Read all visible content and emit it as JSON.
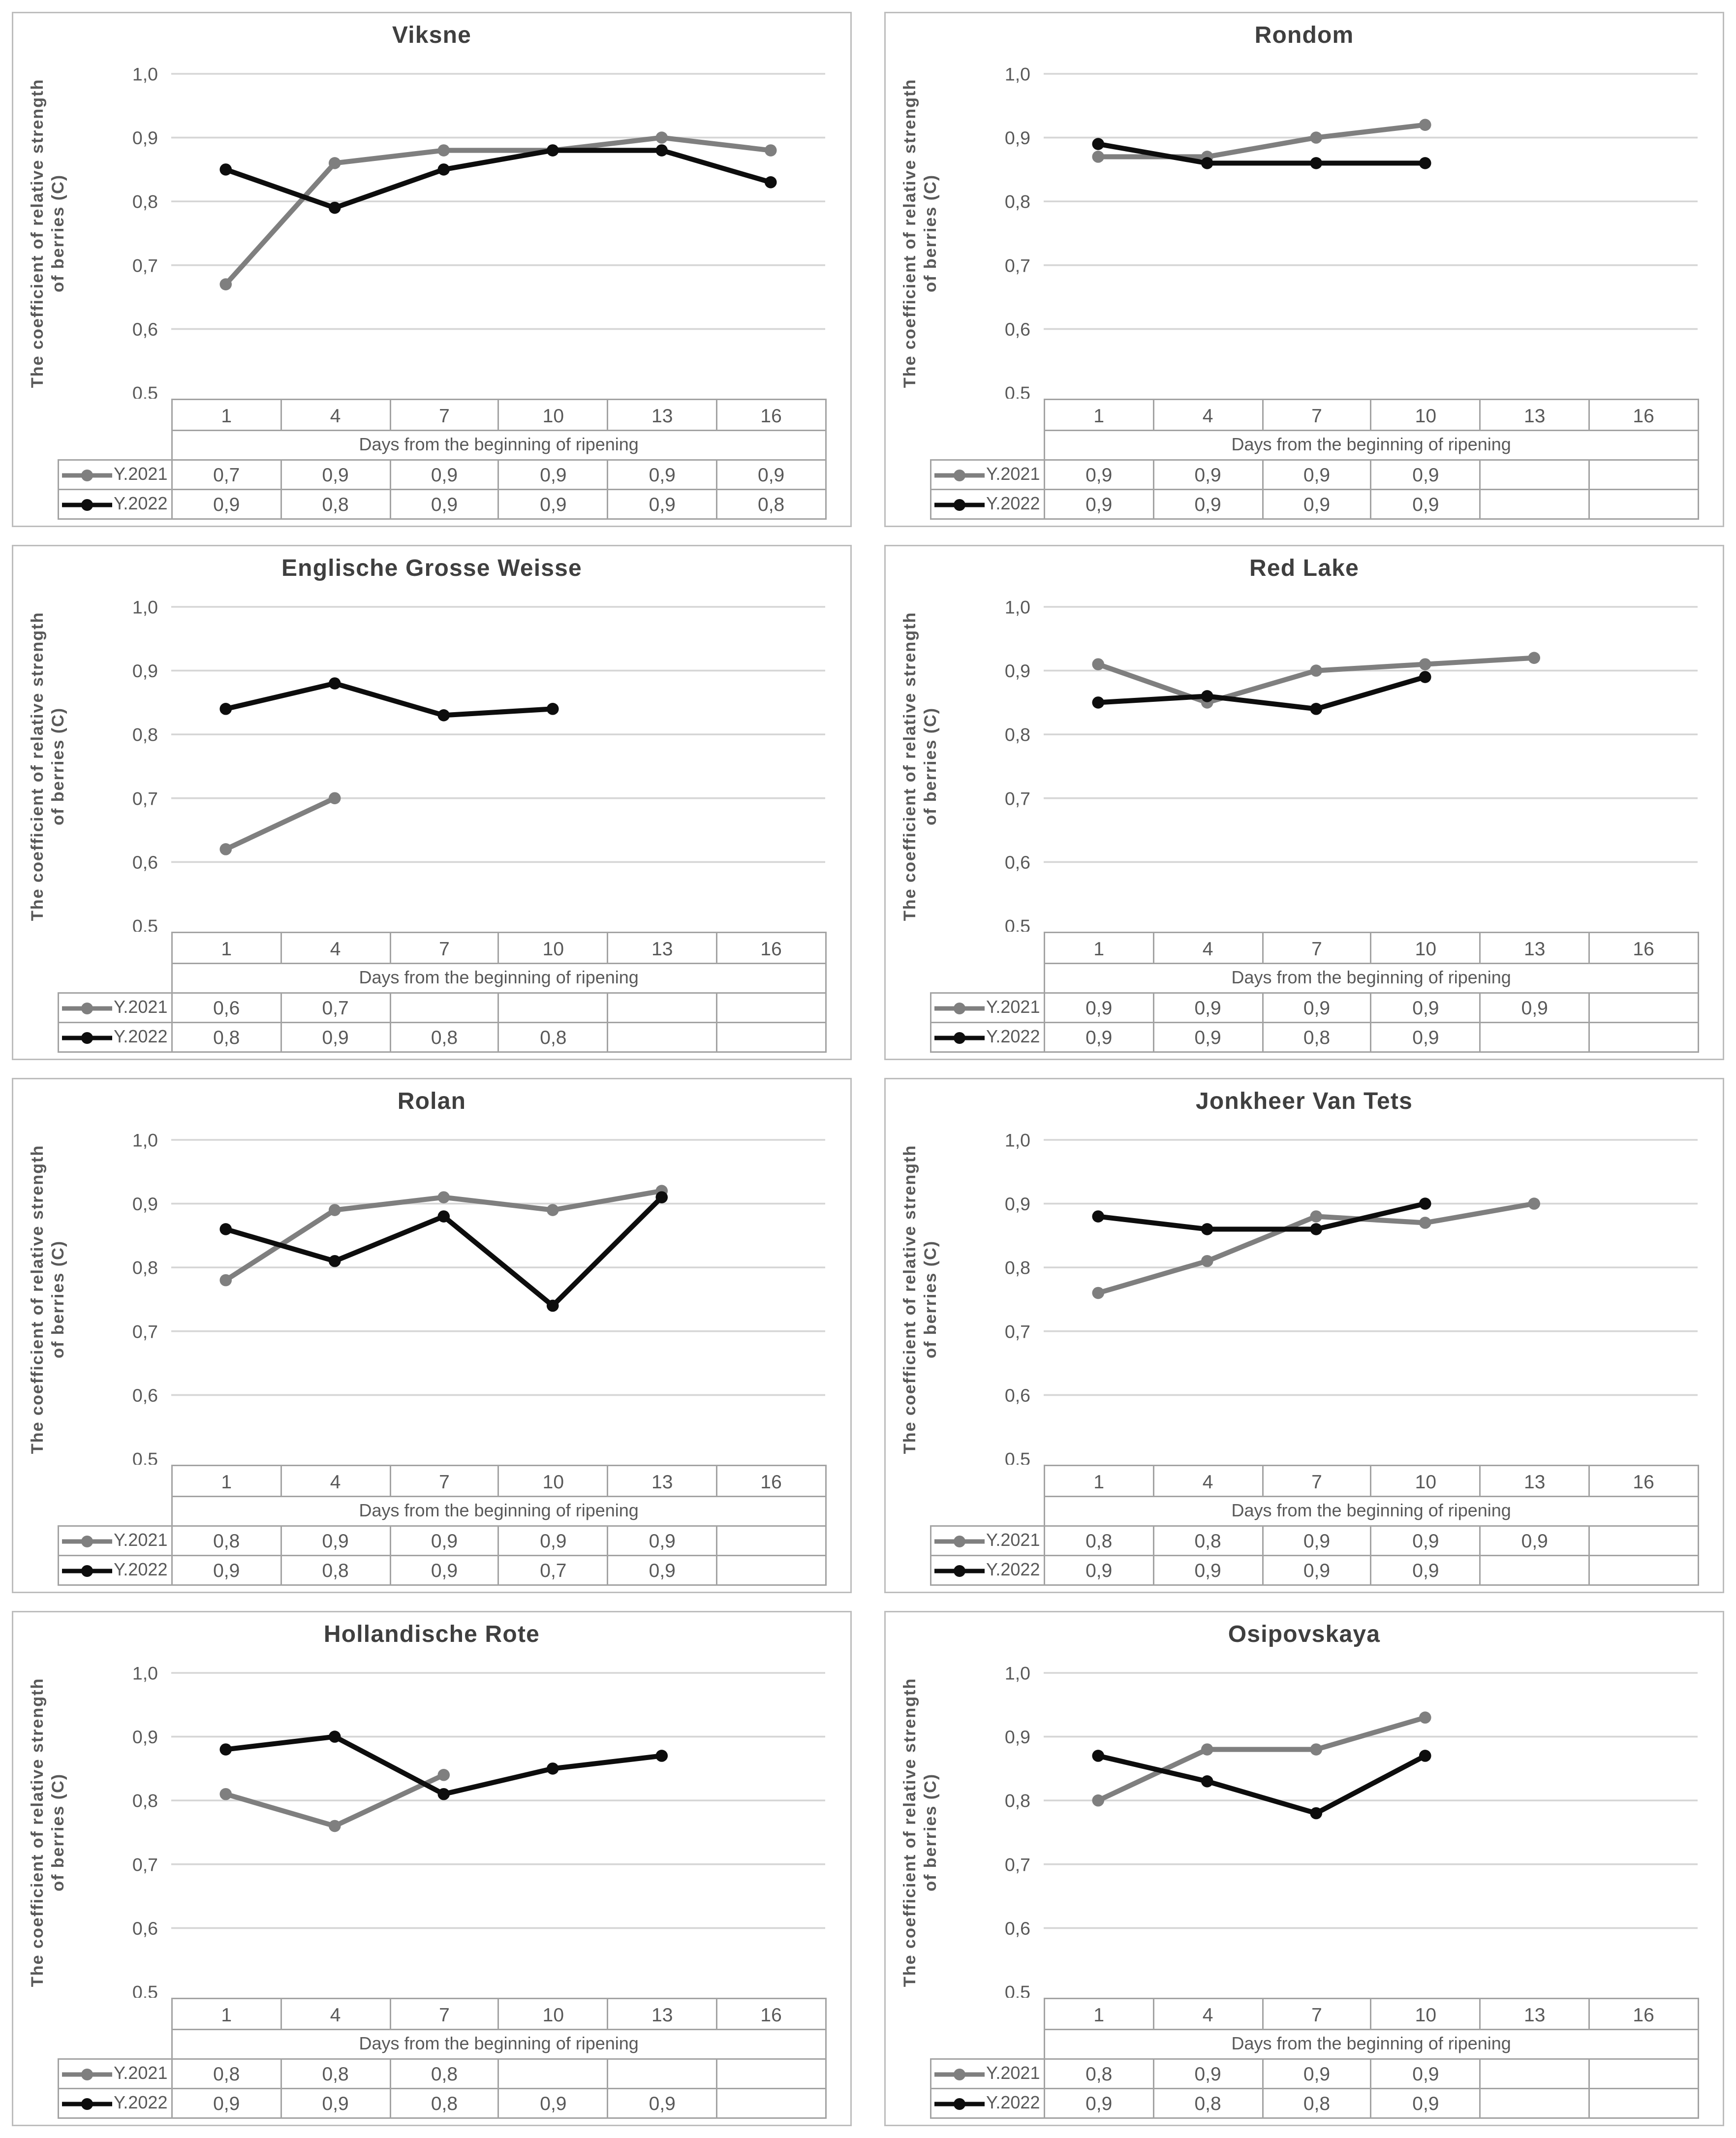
{
  "figure": {
    "y_axis_label": "The coefficient of relative strength of berries (C)",
    "y_axis_label_lines": [
      "The coefficient of relative strength",
      "of berries (C)"
    ],
    "x_axis_label": "Days from the beginning of ripening",
    "y_ticks": [
      {
        "v": 1.0,
        "label": "1,0"
      },
      {
        "v": 0.9,
        "label": "0,9"
      },
      {
        "v": 0.8,
        "label": "0,8"
      },
      {
        "v": 0.7,
        "label": "0,7"
      },
      {
        "v": 0.6,
        "label": "0,6"
      },
      {
        "v": 0.5,
        "label": "0,5"
      }
    ],
    "days": [
      "1",
      "4",
      "7",
      "10",
      "13",
      "16"
    ],
    "colors": {
      "series_2021": "#7f7f7f",
      "series_2022": "#0d0d0d",
      "grid_line": "#d6d6d6",
      "table_border": "#a3a3a3",
      "text": "#595959",
      "title": "#3f3f3f",
      "panel_border": "#bdbdbd"
    }
  },
  "chart_data": [
    {
      "type": "line",
      "title": "Viksne",
      "xlabel": "Days from the beginning of ripening",
      "ylabel": "The coefficient of relative strength of berries (C)",
      "x": [
        1,
        4,
        7,
        10,
        13,
        16
      ],
      "ylim": [
        0.5,
        1.0
      ],
      "grid": true,
      "legend_position": "table-left",
      "series": [
        {
          "name": "Y.2021",
          "color": "#7f7f7f",
          "values": [
            0.67,
            0.86,
            0.88,
            0.88,
            0.9,
            0.88
          ],
          "table": [
            "0,7",
            "0,9",
            "0,9",
            "0,9",
            "0,9",
            "0,9"
          ]
        },
        {
          "name": "Y.2022",
          "color": "#0d0d0d",
          "values": [
            0.85,
            0.79,
            0.85,
            0.88,
            0.88,
            0.83
          ],
          "table": [
            "0,9",
            "0,8",
            "0,9",
            "0,9",
            "0,9",
            "0,8"
          ]
        }
      ]
    },
    {
      "type": "line",
      "title": "Rondom",
      "xlabel": "Days from the beginning of ripening",
      "ylabel": "The coefficient of relative strength of berries (C)",
      "x": [
        1,
        4,
        7,
        10,
        13,
        16
      ],
      "ylim": [
        0.5,
        1.0
      ],
      "grid": true,
      "legend_position": "table-left",
      "series": [
        {
          "name": "Y.2021",
          "color": "#7f7f7f",
          "values": [
            0.87,
            0.87,
            0.9,
            0.92,
            null,
            null
          ],
          "table": [
            "0,9",
            "0,9",
            "0,9",
            "0,9",
            "",
            ""
          ]
        },
        {
          "name": "Y.2022",
          "color": "#0d0d0d",
          "values": [
            0.89,
            0.86,
            0.86,
            0.86,
            null,
            null
          ],
          "table": [
            "0,9",
            "0,9",
            "0,9",
            "0,9",
            "",
            ""
          ]
        }
      ]
    },
    {
      "type": "line",
      "title": "Englische Grosse Weisse",
      "xlabel": "Days from the beginning of ripening",
      "ylabel": "The coefficient of relative strength of berries (C)",
      "x": [
        1,
        4,
        7,
        10,
        13,
        16
      ],
      "ylim": [
        0.5,
        1.0
      ],
      "grid": true,
      "legend_position": "table-left",
      "series": [
        {
          "name": "Y.2021",
          "color": "#7f7f7f",
          "values": [
            0.62,
            0.7,
            null,
            null,
            null,
            null
          ],
          "table": [
            "0,6",
            "0,7",
            "",
            "",
            "",
            ""
          ]
        },
        {
          "name": "Y.2022",
          "color": "#0d0d0d",
          "values": [
            0.84,
            0.88,
            0.83,
            0.84,
            null,
            null
          ],
          "table": [
            "0,8",
            "0,9",
            "0,8",
            "0,8",
            "",
            ""
          ]
        }
      ]
    },
    {
      "type": "line",
      "title": "Red Lake",
      "xlabel": "Days from the beginning of ripening",
      "ylabel": "The coefficient of relative strength of berries (C)",
      "x": [
        1,
        4,
        7,
        10,
        13,
        16
      ],
      "ylim": [
        0.5,
        1.0
      ],
      "grid": true,
      "legend_position": "table-left",
      "series": [
        {
          "name": "Y.2021",
          "color": "#7f7f7f",
          "values": [
            0.91,
            0.85,
            0.9,
            0.91,
            0.92,
            null
          ],
          "table": [
            "0,9",
            "0,9",
            "0,9",
            "0,9",
            "0,9",
            ""
          ]
        },
        {
          "name": "Y.2022",
          "color": "#0d0d0d",
          "values": [
            0.85,
            0.86,
            0.84,
            0.89,
            null,
            null
          ],
          "table": [
            "0,9",
            "0,9",
            "0,8",
            "0,9",
            "",
            ""
          ]
        }
      ]
    },
    {
      "type": "line",
      "title": "Rolan",
      "xlabel": "Days from the beginning of ripening",
      "ylabel": "The coefficient of relative strength of berries (C)",
      "x": [
        1,
        4,
        7,
        10,
        13,
        16
      ],
      "ylim": [
        0.5,
        1.0
      ],
      "grid": true,
      "legend_position": "table-left",
      "series": [
        {
          "name": "Y.2021",
          "color": "#7f7f7f",
          "values": [
            0.78,
            0.89,
            0.91,
            0.89,
            0.92,
            null
          ],
          "table": [
            "0,8",
            "0,9",
            "0,9",
            "0,9",
            "0,9",
            ""
          ]
        },
        {
          "name": "Y.2022",
          "color": "#0d0d0d",
          "values": [
            0.86,
            0.81,
            0.88,
            0.74,
            0.91,
            null
          ],
          "table": [
            "0,9",
            "0,8",
            "0,9",
            "0,7",
            "0,9",
            ""
          ]
        }
      ]
    },
    {
      "type": "line",
      "title": "Jonkheer Van Tets",
      "xlabel": "Days from the beginning of ripening",
      "ylabel": "The coefficient of relative strength of berries (C)",
      "x": [
        1,
        4,
        7,
        10,
        13,
        16
      ],
      "ylim": [
        0.5,
        1.0
      ],
      "grid": true,
      "legend_position": "table-left",
      "series": [
        {
          "name": "Y.2021",
          "color": "#7f7f7f",
          "values": [
            0.76,
            0.81,
            0.88,
            0.87,
            0.9,
            null
          ],
          "table": [
            "0,8",
            "0,8",
            "0,9",
            "0,9",
            "0,9",
            ""
          ]
        },
        {
          "name": "Y.2022",
          "color": "#0d0d0d",
          "values": [
            0.88,
            0.86,
            0.86,
            0.9,
            null,
            null
          ],
          "table": [
            "0,9",
            "0,9",
            "0,9",
            "0,9",
            "",
            ""
          ]
        }
      ]
    },
    {
      "type": "line",
      "title": "Hollandische Rote",
      "xlabel": "Days from the beginning of ripening",
      "ylabel": "The coefficient of relative strength of berries (C)",
      "x": [
        1,
        4,
        7,
        10,
        13,
        16
      ],
      "ylim": [
        0.5,
        1.0
      ],
      "grid": true,
      "legend_position": "table-left",
      "series": [
        {
          "name": "Y.2021",
          "color": "#7f7f7f",
          "values": [
            0.81,
            0.76,
            0.84,
            null,
            null,
            null
          ],
          "table": [
            "0,8",
            "0,8",
            "0,8",
            "",
            "",
            ""
          ]
        },
        {
          "name": "Y.2022",
          "color": "#0d0d0d",
          "values": [
            0.88,
            0.9,
            0.81,
            0.85,
            0.87,
            null
          ],
          "table": [
            "0,9",
            "0,9",
            "0,8",
            "0,9",
            "0,9",
            ""
          ]
        }
      ]
    },
    {
      "type": "line",
      "title": "Osipovskaya",
      "xlabel": "Days from the beginning of ripening",
      "ylabel": "The coefficient of relative strength of berries (C)",
      "x": [
        1,
        4,
        7,
        10,
        13,
        16
      ],
      "ylim": [
        0.5,
        1.0
      ],
      "grid": true,
      "legend_position": "table-left",
      "series": [
        {
          "name": "Y.2021",
          "color": "#7f7f7f",
          "values": [
            0.8,
            0.88,
            0.88,
            0.93,
            null,
            null
          ],
          "table": [
            "0,8",
            "0,9",
            "0,9",
            "0,9",
            "",
            ""
          ]
        },
        {
          "name": "Y.2022",
          "color": "#0d0d0d",
          "values": [
            0.87,
            0.83,
            0.78,
            0.87,
            null,
            null
          ],
          "table": [
            "0,9",
            "0,8",
            "0,8",
            "0,9",
            "",
            ""
          ]
        }
      ]
    }
  ]
}
